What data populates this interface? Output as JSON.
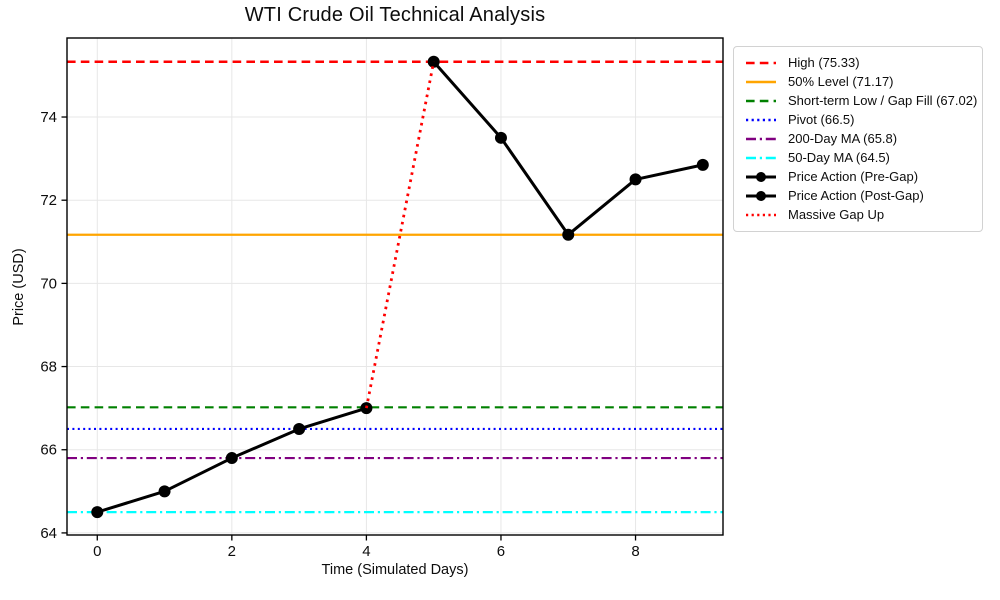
{
  "chart_data": {
    "type": "line",
    "title": "WTI Crude Oil Technical Analysis",
    "xlabel": "Time (Simulated Days)",
    "ylabel": "Price (USD)",
    "xlim": [
      -0.45,
      9.3
    ],
    "ylim": [
      63.95,
      75.9
    ],
    "xticks": [
      0,
      2,
      4,
      6,
      8
    ],
    "yticks": [
      64,
      66,
      68,
      70,
      72,
      74
    ],
    "grid": true,
    "grid_color": "#e7e7e7",
    "background": "#ffffff",
    "legend_position": "outside upper right",
    "levels": [
      {
        "label": "High (75.33)",
        "value": 75.33,
        "color": "#ff0000",
        "style": "dashed"
      },
      {
        "label": "50% Level (71.17)",
        "value": 71.17,
        "color": "#ffa500",
        "style": "solid"
      },
      {
        "label": "Short-term Low / Gap Fill (67.02)",
        "value": 67.02,
        "color": "#008000",
        "style": "dashed"
      },
      {
        "label": "Pivot (66.5)",
        "value": 66.5,
        "color": "#0000ff",
        "style": "dotted"
      },
      {
        "label": "200-Day MA (65.8)",
        "value": 65.8,
        "color": "#800080",
        "style": "dashdot"
      },
      {
        "label": "50-Day MA (64.5)",
        "value": 64.5,
        "color": "#00ffff",
        "style": "dashdot"
      }
    ],
    "series": [
      {
        "name": "Price Action (Pre-Gap)",
        "x": [
          0,
          1,
          2,
          3,
          4
        ],
        "values": [
          64.5,
          65.0,
          65.8,
          66.5,
          67.0
        ],
        "color": "#000000",
        "style": "solid",
        "marker": "circle"
      },
      {
        "name": "Price Action (Post-Gap)",
        "x": [
          5,
          6,
          7,
          8,
          9
        ],
        "values": [
          75.33,
          73.5,
          71.17,
          72.5,
          72.85
        ],
        "color": "#000000",
        "style": "solid",
        "marker": "circle"
      },
      {
        "name": "Massive Gap Up",
        "x": [
          4,
          5
        ],
        "values": [
          67.0,
          75.33
        ],
        "color": "#ff0000",
        "style": "dotted",
        "marker": "none"
      }
    ]
  }
}
